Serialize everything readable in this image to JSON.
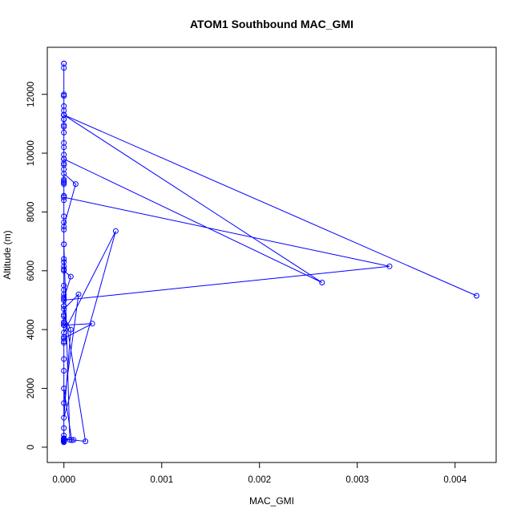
{
  "chart_data": {
    "type": "line",
    "title": "ATOM1 Southbound MAC_GMI",
    "xlabel": "MAC_GMI",
    "ylabel": "Altitude (m)",
    "xlim": [
      -0.00017,
      0.00442
    ],
    "ylim": [
      -520,
      13600
    ],
    "x_ticks": [
      {
        "value": 0,
        "label": "0.000"
      },
      {
        "value": 0.001,
        "label": "0.001"
      },
      {
        "value": 0.002,
        "label": "0.002"
      },
      {
        "value": 0.003,
        "label": "0.003"
      },
      {
        "value": 0.004,
        "label": "0.004"
      }
    ],
    "y_ticks": [
      {
        "value": 0,
        "label": "0"
      },
      {
        "value": 2000,
        "label": "2000"
      },
      {
        "value": 4000,
        "label": "4000"
      },
      {
        "value": 6000,
        "label": "6000"
      },
      {
        "value": 8000,
        "label": "8000"
      },
      {
        "value": 10000,
        "label": "10000"
      },
      {
        "value": 12000,
        "label": "12000"
      }
    ],
    "grid": false,
    "legend": "none",
    "marker": "open-circle",
    "series": [
      {
        "color": "#0000ff",
        "x": [
          0.0,
          0.0,
          0.0,
          0.0,
          0.0,
          0.0,
          0.0,
          0.0,
          0.0,
          0.0,
          0.0,
          0.0,
          0.0,
          0.0,
          0.0,
          0.0,
          0.0,
          0.0,
          0.0,
          0.0,
          0.0,
          0.0,
          0.0,
          0.0,
          0.0,
          0.0,
          0.0,
          0.0,
          0.0,
          0.0,
          0.0,
          0.0,
          0.0,
          0.0,
          0.0,
          0.0,
          0.0,
          0.0,
          0.0,
          0.0,
          0.0,
          0.0,
          0.0,
          0.0,
          0.0,
          0.0,
          0.0,
          0.0,
          0.0,
          0.0001,
          0.0,
          0.0,
          0.0,
          7e-05,
          0.0,
          0.0,
          0.0,
          0.0,
          0.00015,
          0.0,
          0.0,
          0.0,
          8e-05,
          0.0,
          0.0,
          0.00022,
          0.0,
          0.0,
          0.0,
          0.0,
          0.0,
          6e-05,
          0.0,
          0.0,
          0.0,
          0.00029,
          0.0,
          0.0,
          7e-05,
          0.0,
          0.00053,
          0.0,
          0.0,
          0.00012,
          0.0,
          0.0,
          0.0,
          0.0,
          0.0,
          0.0,
          0.00264,
          0.0,
          0.0,
          0.0,
          0.0,
          0.0,
          0.0,
          0.00333,
          0.0,
          0.0,
          0.0,
          0.00422,
          0.0,
          0.0,
          0.0,
          0.0
        ],
        "y": [
          13050,
          12000,
          11950,
          11600,
          11450,
          11300,
          11150,
          10950,
          10700,
          10350,
          10200,
          9950,
          9800,
          9650,
          9450,
          9100,
          8950,
          8550,
          7850,
          7650,
          7400,
          6900,
          6400,
          6300,
          6150,
          6050,
          5500,
          5350,
          5100,
          4800,
          4500,
          4250,
          4200,
          4150,
          3750,
          3550,
          2600,
          650,
          250,
          200,
          180,
          170,
          220,
          240,
          210,
          190,
          200,
          230,
          260,
          250,
          270,
          400,
          5050,
          5800,
          6000,
          4250,
          280,
          1500,
          5200,
          4700,
          3600,
          300,
          240,
          2000,
          4800,
          200,
          280,
          3000,
          5200,
          200,
          6900,
          250,
          300,
          9000,
          4150,
          4200,
          3700,
          4450,
          4000,
          1000,
          7350,
          3900,
          7500,
          8950,
          9300,
          9800,
          8400,
          9000,
          9050,
          9800,
          5600,
          11300,
          10900,
          11300,
          11150,
          9600,
          8500,
          6150,
          5000,
          8550,
          11300,
          5150,
          11300,
          11950,
          12900,
          13050
        ]
      }
    ]
  }
}
